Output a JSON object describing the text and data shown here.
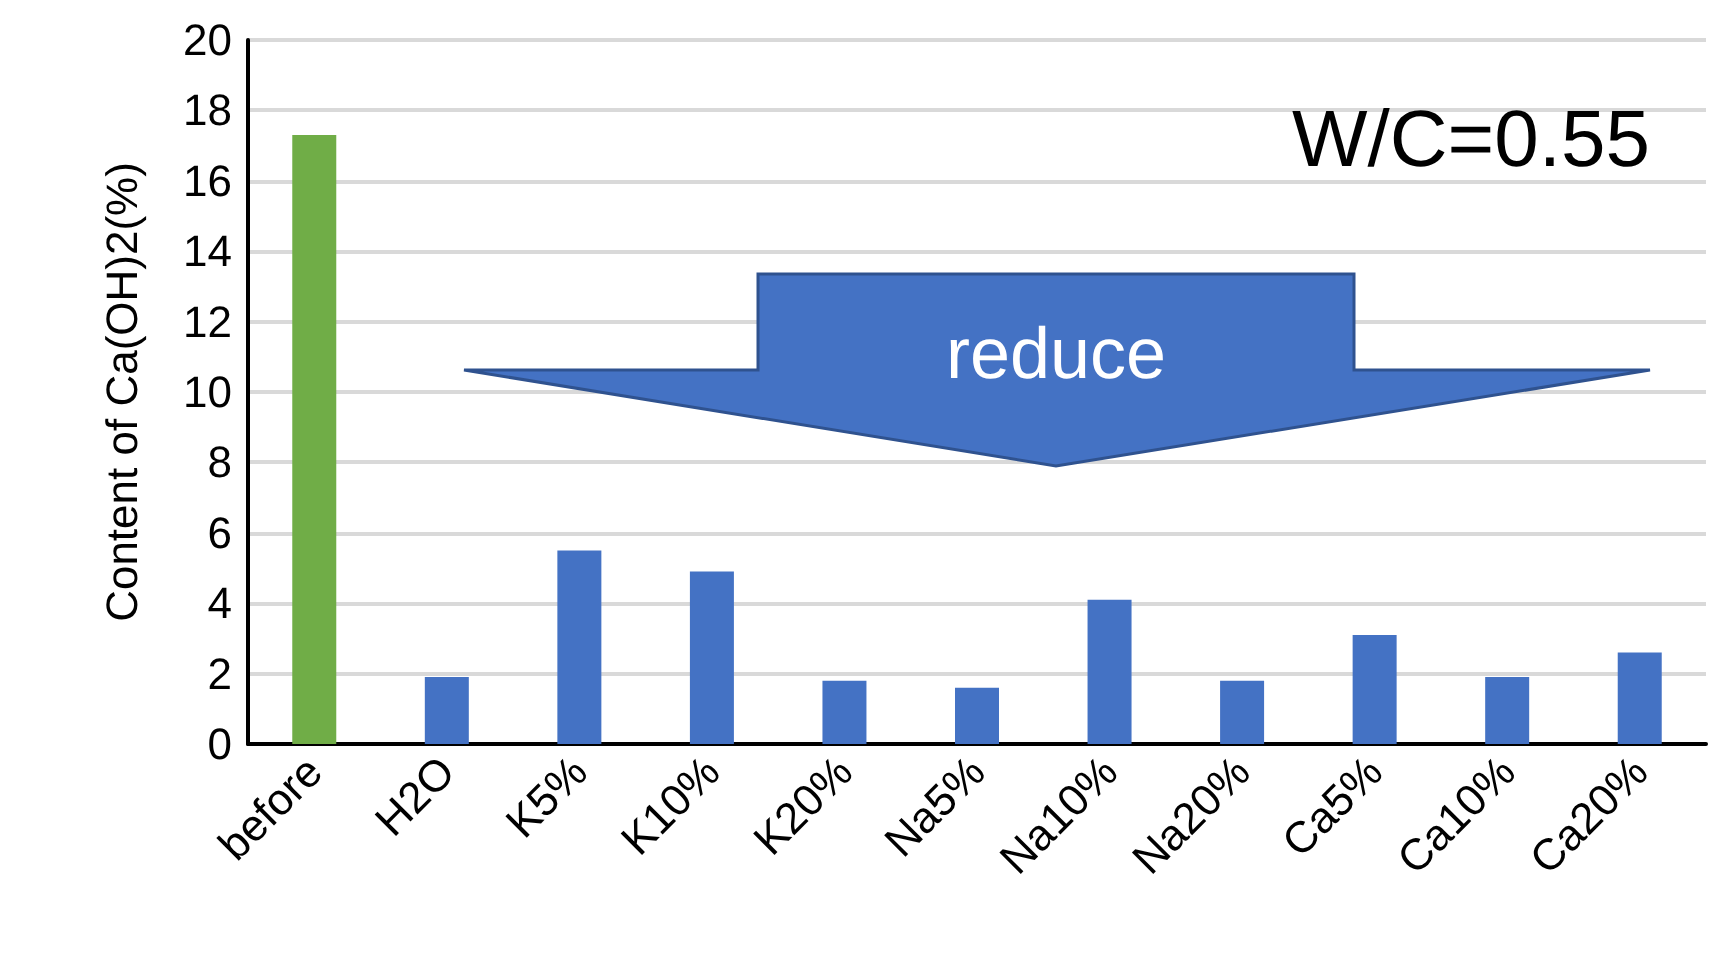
{
  "chart_data": {
    "type": "bar",
    "ylabel": "Content of Ca(OH)2(%)",
    "categories": [
      "before",
      "H2O",
      "K5%",
      "K10%",
      "K20%",
      "Na5%",
      "Na10%",
      "Na20%",
      "Ca5%",
      "Ca10%",
      "Ca20%"
    ],
    "values": [
      17.3,
      1.9,
      5.5,
      4.9,
      1.8,
      1.6,
      4.1,
      1.8,
      3.1,
      1.9,
      2.6
    ],
    "colors": [
      "#70ad47",
      "#4472c4",
      "#4472c4",
      "#4472c4",
      "#4472c4",
      "#4472c4",
      "#4472c4",
      "#4472c4",
      "#4472c4",
      "#4472c4",
      "#4472c4"
    ],
    "ylim": [
      0,
      20
    ],
    "yticks": [
      0,
      2,
      4,
      6,
      8,
      10,
      12,
      14,
      16,
      18,
      20
    ],
    "grid": "y",
    "annotations": [
      "W/C=0.55",
      "reduce"
    ]
  }
}
